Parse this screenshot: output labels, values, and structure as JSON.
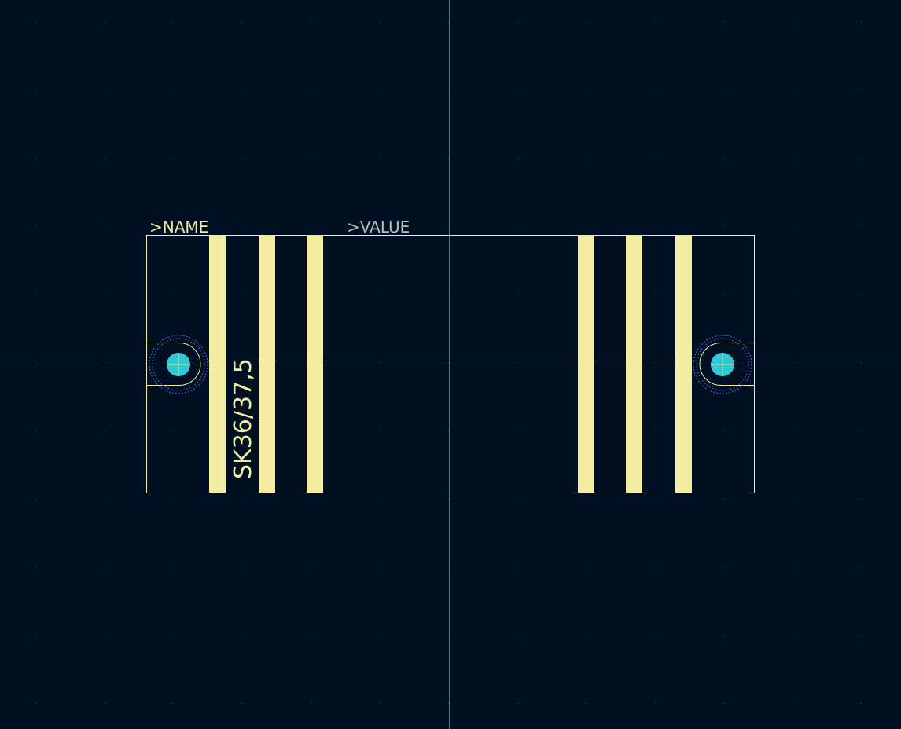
{
  "colors": {
    "background": "#001023",
    "grid_dot": "#3a4a5c",
    "crosshair": "#c8c8c8",
    "silkscreen": "#f2eda1",
    "fab_outline": "#f2eda1",
    "value_text": "#b8bdc4",
    "pad_ring": "#4d6fe0",
    "pad_drill": "#2fc9d6"
  },
  "labels": {
    "name": ">NAME",
    "value": ">VALUE",
    "part_number": "SK36/37,5"
  },
  "icons": {
    "pad_left": "through-hole-pad-icon",
    "pad_right": "through-hole-pad-icon"
  }
}
